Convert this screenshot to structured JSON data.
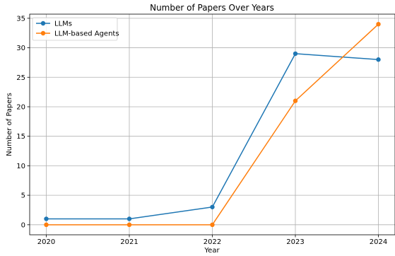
{
  "chart_data": {
    "type": "line",
    "title": "Number of Papers Over Years",
    "xlabel": "Year",
    "ylabel": "Number of Papers",
    "x": [
      2020,
      2021,
      2022,
      2023,
      2024
    ],
    "x_tick_labels": [
      "2020",
      "2021",
      "2022",
      "2023",
      "2024"
    ],
    "y_ticks": [
      0,
      5,
      10,
      15,
      20,
      25,
      30,
      35
    ],
    "ylim": [
      -1.7,
      35.7
    ],
    "xlim": [
      2019.8,
      2024.2
    ],
    "grid": true,
    "legend_position": "top-left",
    "series": [
      {
        "name": "LLMs",
        "values": [
          1,
          1,
          3,
          29,
          28
        ],
        "color": "#1f77b4",
        "marker": "circle"
      },
      {
        "name": "LLM-based Agents",
        "values": [
          0,
          0,
          0,
          21,
          34
        ],
        "color": "#ff7f0e",
        "marker": "circle"
      }
    ]
  }
}
